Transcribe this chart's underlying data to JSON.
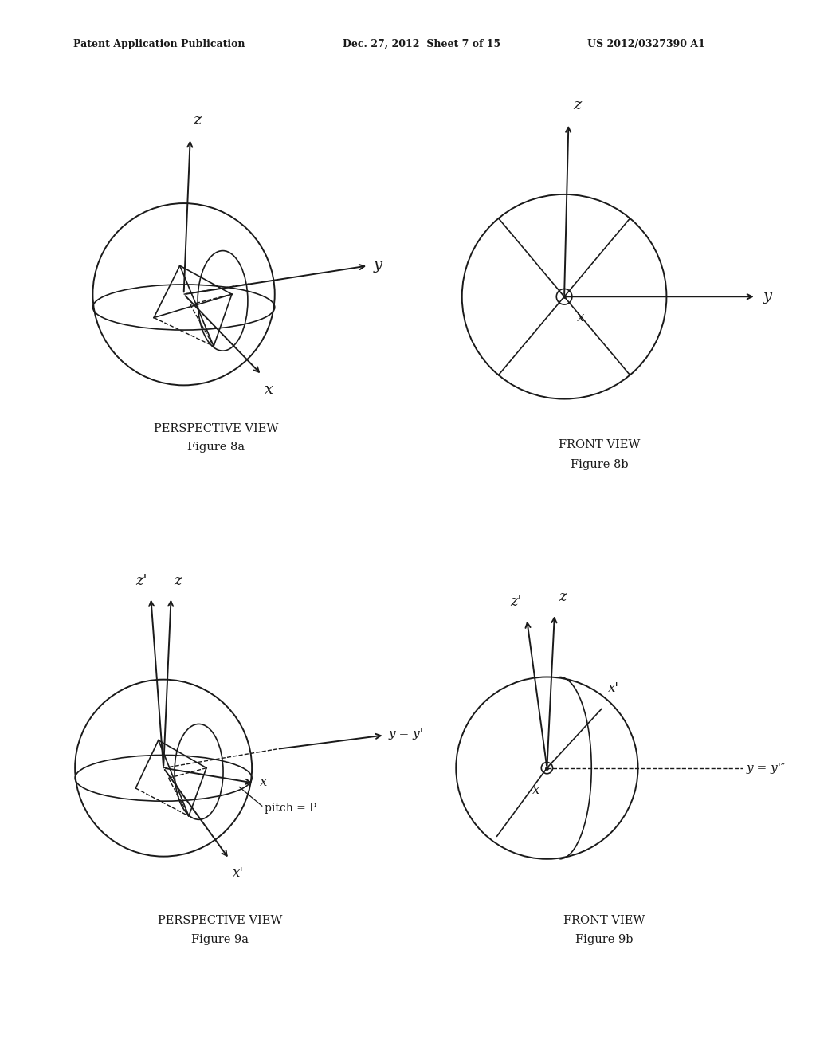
{
  "bg_color": "#ffffff",
  "line_color": "#1a1a1a",
  "header_left": "Patent Application Publication",
  "header_mid": "Dec. 27, 2012  Sheet 7 of 15",
  "header_right": "US 2012/0327390 A1",
  "fig8a_title": "PERSPECTIVE VIEW",
  "fig8a_label": "Figure 8a",
  "fig8b_title": "FRONT VIEW",
  "fig8b_label": "Figure 8b",
  "fig9a_title": "PERSPECTIVE VIEW",
  "fig9a_label": "Figure 9a",
  "fig9b_title": "FRONT VIEW",
  "fig9b_label": "Figure 9b"
}
